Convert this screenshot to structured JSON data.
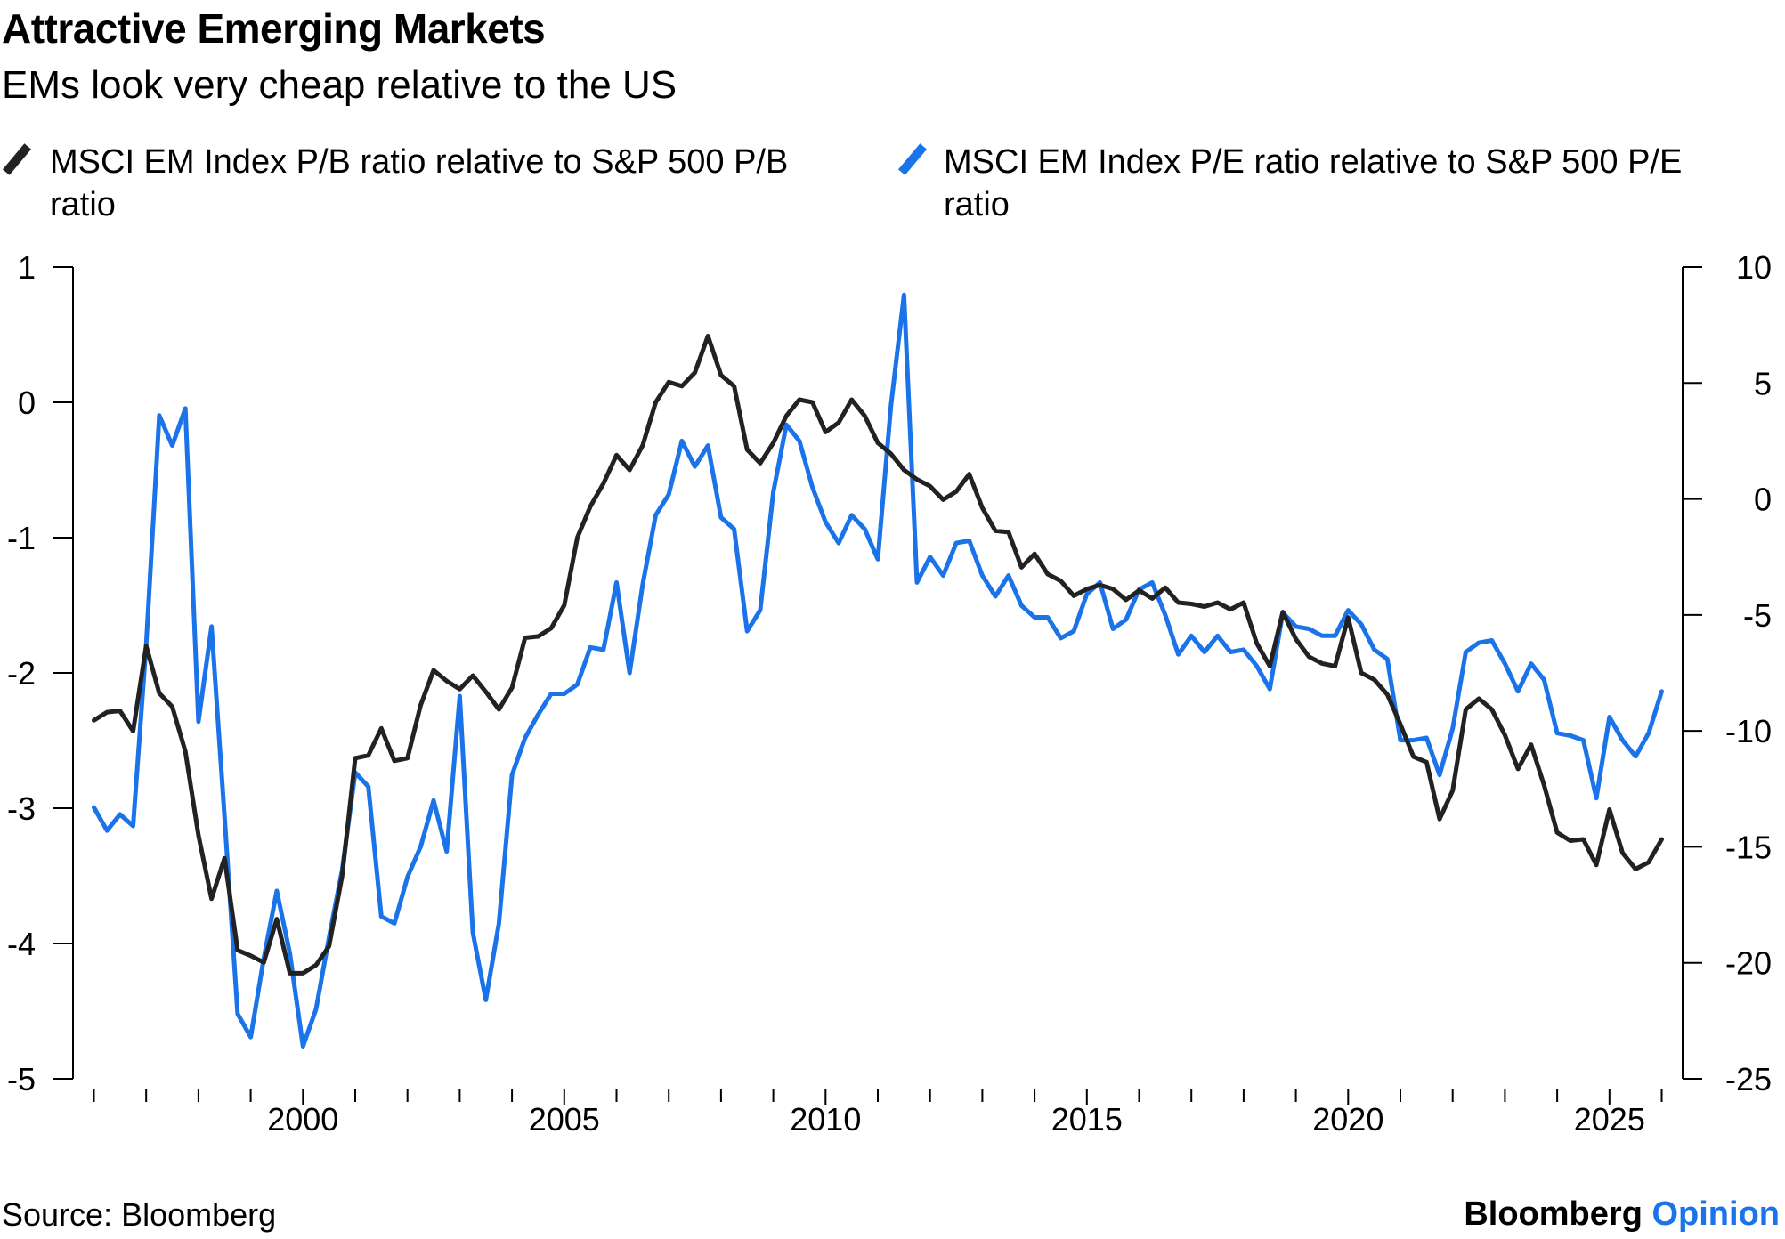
{
  "header": {
    "title": "Attractive Emerging Markets",
    "subtitle": "EMs look very cheap relative to the US"
  },
  "legend": [
    {
      "label": "MSCI EM Index P/B ratio relative to S&P 500 P/B ratio",
      "color": "#222222",
      "icon": "diagonal-dash-icon"
    },
    {
      "label": "MSCI EM Index P/E ratio relative to S&P 500 P/E ratio",
      "color": "#1a73e8",
      "icon": "diagonal-dash-icon"
    }
  ],
  "footer": {
    "source": "Source: Bloomberg",
    "brand_main": "Bloomberg",
    "brand_accent": "Opinion"
  },
  "chart_data": {
    "type": "line",
    "title": "Attractive Emerging Markets",
    "subtitle": "EMs look very cheap relative to the US",
    "x_range": [
      1995.6,
      2026.4
    ],
    "x_ticks": [
      2000,
      2005,
      2010,
      2015,
      2020,
      2025
    ],
    "x_tick_labels": [
      "2000",
      "2005",
      "2010",
      "2015",
      "2020",
      "2025"
    ],
    "y_left": {
      "min": -5,
      "max": 1,
      "ticks": [
        1,
        0,
        -1,
        -2,
        -3,
        -4,
        -5
      ],
      "tick_labels": [
        "1",
        "0",
        "-1",
        "-2",
        "-3",
        "-4",
        "-5"
      ]
    },
    "y_right": {
      "min": -25,
      "max": 10,
      "ticks": [
        10,
        5,
        0,
        -5,
        -10,
        -15,
        -20,
        -25
      ],
      "tick_labels": [
        "10",
        "5",
        "0",
        "-5",
        "-10",
        "-15",
        "-20",
        "-25"
      ]
    },
    "grid": false,
    "legend_position": "top",
    "source": "Source: Bloomberg",
    "series": [
      {
        "name": "MSCI EM Index P/B ratio relative to S&P 500 P/B ratio",
        "axis": "left",
        "color": "#222222",
        "points": [
          [
            1996.0,
            -2.35
          ],
          [
            1996.25,
            -2.29
          ],
          [
            1996.5,
            -2.28
          ],
          [
            1996.75,
            -2.43
          ],
          [
            1997.0,
            -1.8
          ],
          [
            1997.25,
            -2.15
          ],
          [
            1997.5,
            -2.25
          ],
          [
            1997.75,
            -2.58
          ],
          [
            1998.0,
            -3.2
          ],
          [
            1998.25,
            -3.67
          ],
          [
            1998.5,
            -3.37
          ],
          [
            1998.75,
            -4.05
          ],
          [
            1999.0,
            -4.09
          ],
          [
            1999.25,
            -4.14
          ],
          [
            1999.5,
            -3.82
          ],
          [
            1999.75,
            -4.22
          ],
          [
            2000.0,
            -4.22
          ],
          [
            2000.25,
            -4.16
          ],
          [
            2000.5,
            -4.02
          ],
          [
            2000.75,
            -3.5
          ],
          [
            2001.0,
            -2.63
          ],
          [
            2001.25,
            -2.61
          ],
          [
            2001.5,
            -2.41
          ],
          [
            2001.75,
            -2.65
          ],
          [
            2002.0,
            -2.63
          ],
          [
            2002.25,
            -2.24
          ],
          [
            2002.5,
            -1.98
          ],
          [
            2002.75,
            -2.06
          ],
          [
            2003.0,
            -2.12
          ],
          [
            2003.25,
            -2.02
          ],
          [
            2003.5,
            -2.14
          ],
          [
            2003.75,
            -2.27
          ],
          [
            2004.0,
            -2.11
          ],
          [
            2004.25,
            -1.74
          ],
          [
            2004.5,
            -1.73
          ],
          [
            2004.75,
            -1.67
          ],
          [
            2005.0,
            -1.5
          ],
          [
            2005.25,
            -1.0
          ],
          [
            2005.5,
            -0.77
          ],
          [
            2005.75,
            -0.6
          ],
          [
            2006.0,
            -0.39
          ],
          [
            2006.25,
            -0.5
          ],
          [
            2006.5,
            -0.32
          ],
          [
            2006.75,
            0.0
          ],
          [
            2007.0,
            0.15
          ],
          [
            2007.25,
            0.12
          ],
          [
            2007.5,
            0.22
          ],
          [
            2007.75,
            0.49
          ],
          [
            2008.0,
            0.2
          ],
          [
            2008.25,
            0.12
          ],
          [
            2008.5,
            -0.35
          ],
          [
            2008.75,
            -0.45
          ],
          [
            2009.0,
            -0.3
          ],
          [
            2009.25,
            -0.1
          ],
          [
            2009.5,
            0.02
          ],
          [
            2009.75,
            0.0
          ],
          [
            2010.0,
            -0.22
          ],
          [
            2010.25,
            -0.15
          ],
          [
            2010.5,
            0.02
          ],
          [
            2010.75,
            -0.1
          ],
          [
            2011.0,
            -0.3
          ],
          [
            2011.25,
            -0.38
          ],
          [
            2011.5,
            -0.5
          ],
          [
            2011.75,
            -0.57
          ],
          [
            2012.0,
            -0.62
          ],
          [
            2012.25,
            -0.72
          ],
          [
            2012.5,
            -0.66
          ],
          [
            2012.75,
            -0.53
          ],
          [
            2013.0,
            -0.78
          ],
          [
            2013.25,
            -0.95
          ],
          [
            2013.5,
            -0.96
          ],
          [
            2013.75,
            -1.22
          ],
          [
            2014.0,
            -1.12
          ],
          [
            2014.25,
            -1.27
          ],
          [
            2014.5,
            -1.32
          ],
          [
            2014.75,
            -1.43
          ],
          [
            2015.0,
            -1.38
          ],
          [
            2015.25,
            -1.35
          ],
          [
            2015.5,
            -1.38
          ],
          [
            2015.75,
            -1.46
          ],
          [
            2016.0,
            -1.39
          ],
          [
            2016.25,
            -1.45
          ],
          [
            2016.5,
            -1.37
          ],
          [
            2016.75,
            -1.48
          ],
          [
            2017.0,
            -1.49
          ],
          [
            2017.25,
            -1.51
          ],
          [
            2017.5,
            -1.48
          ],
          [
            2017.75,
            -1.53
          ],
          [
            2018.0,
            -1.48
          ],
          [
            2018.25,
            -1.78
          ],
          [
            2018.5,
            -1.95
          ],
          [
            2018.75,
            -1.55
          ],
          [
            2019.0,
            -1.75
          ],
          [
            2019.25,
            -1.88
          ],
          [
            2019.5,
            -1.93
          ],
          [
            2019.75,
            -1.95
          ],
          [
            2020.0,
            -1.59
          ],
          [
            2020.25,
            -2.0
          ],
          [
            2020.5,
            -2.05
          ],
          [
            2020.75,
            -2.16
          ],
          [
            2021.0,
            -2.38
          ],
          [
            2021.25,
            -2.62
          ],
          [
            2021.5,
            -2.66
          ],
          [
            2021.75,
            -3.08
          ],
          [
            2022.0,
            -2.87
          ],
          [
            2022.25,
            -2.27
          ],
          [
            2022.5,
            -2.19
          ],
          [
            2022.75,
            -2.27
          ],
          [
            2023.0,
            -2.46
          ],
          [
            2023.25,
            -2.71
          ],
          [
            2023.5,
            -2.53
          ],
          [
            2023.75,
            -2.83
          ],
          [
            2024.0,
            -3.18
          ],
          [
            2024.25,
            -3.24
          ],
          [
            2024.5,
            -3.23
          ],
          [
            2024.75,
            -3.42
          ],
          [
            2025.0,
            -3.01
          ],
          [
            2025.25,
            -3.33
          ],
          [
            2025.5,
            -3.45
          ],
          [
            2025.75,
            -3.4
          ],
          [
            2026.0,
            -3.23
          ]
        ]
      },
      {
        "name": "MSCI EM Index P/E ratio relative to S&P 500 P/E ratio",
        "axis": "right",
        "color": "#1a73e8",
        "points": [
          [
            1996.0,
            -13.3
          ],
          [
            1996.25,
            -14.3
          ],
          [
            1996.5,
            -13.6
          ],
          [
            1996.75,
            -14.1
          ],
          [
            1997.0,
            -6.3
          ],
          [
            1997.25,
            3.6
          ],
          [
            1997.5,
            2.3
          ],
          [
            1997.75,
            3.9
          ],
          [
            1998.0,
            -9.6
          ],
          [
            1998.25,
            -5.5
          ],
          [
            1998.5,
            -13.7
          ],
          [
            1998.75,
            -22.2
          ],
          [
            1999.0,
            -23.2
          ],
          [
            1999.25,
            -19.8
          ],
          [
            1999.5,
            -16.9
          ],
          [
            1999.75,
            -19.6
          ],
          [
            2000.0,
            -23.6
          ],
          [
            2000.25,
            -22.0
          ],
          [
            2000.5,
            -18.9
          ],
          [
            2000.75,
            -16.0
          ],
          [
            2001.0,
            -11.8
          ],
          [
            2001.25,
            -12.4
          ],
          [
            2001.5,
            -18.0
          ],
          [
            2001.75,
            -18.3
          ],
          [
            2002.0,
            -16.3
          ],
          [
            2002.25,
            -15.0
          ],
          [
            2002.5,
            -13.0
          ],
          [
            2002.75,
            -15.2
          ],
          [
            2003.0,
            -8.5
          ],
          [
            2003.25,
            -18.7
          ],
          [
            2003.5,
            -21.6
          ],
          [
            2003.75,
            -18.3
          ],
          [
            2004.0,
            -11.9
          ],
          [
            2004.25,
            -10.3
          ],
          [
            2004.5,
            -9.3
          ],
          [
            2004.75,
            -8.4
          ],
          [
            2005.0,
            -8.4
          ],
          [
            2005.25,
            -8.0
          ],
          [
            2005.5,
            -6.4
          ],
          [
            2005.75,
            -6.5
          ],
          [
            2006.0,
            -3.6
          ],
          [
            2006.25,
            -7.5
          ],
          [
            2006.5,
            -3.7
          ],
          [
            2006.75,
            -0.7
          ],
          [
            2007.0,
            0.2
          ],
          [
            2007.25,
            2.5
          ],
          [
            2007.5,
            1.4
          ],
          [
            2007.75,
            2.3
          ],
          [
            2008.0,
            -0.8
          ],
          [
            2008.25,
            -1.3
          ],
          [
            2008.5,
            -5.7
          ],
          [
            2008.75,
            -4.8
          ],
          [
            2009.0,
            0.3
          ],
          [
            2009.25,
            3.2
          ],
          [
            2009.5,
            2.5
          ],
          [
            2009.75,
            0.5
          ],
          [
            2010.0,
            -1.0
          ],
          [
            2010.25,
            -1.9
          ],
          [
            2010.5,
            -0.7
          ],
          [
            2010.75,
            -1.3
          ],
          [
            2011.0,
            -2.6
          ],
          [
            2011.25,
            4.0
          ],
          [
            2011.5,
            8.8
          ],
          [
            2011.75,
            -3.6
          ],
          [
            2012.0,
            -2.5
          ],
          [
            2012.25,
            -3.3
          ],
          [
            2012.5,
            -1.9
          ],
          [
            2012.75,
            -1.8
          ],
          [
            2013.0,
            -3.3
          ],
          [
            2013.25,
            -4.2
          ],
          [
            2013.5,
            -3.3
          ],
          [
            2013.75,
            -4.6
          ],
          [
            2014.0,
            -5.1
          ],
          [
            2014.25,
            -5.1
          ],
          [
            2014.5,
            -6.0
          ],
          [
            2014.75,
            -5.7
          ],
          [
            2015.0,
            -4.1
          ],
          [
            2015.25,
            -3.6
          ],
          [
            2015.5,
            -5.6
          ],
          [
            2015.75,
            -5.2
          ],
          [
            2016.0,
            -3.9
          ],
          [
            2016.25,
            -3.6
          ],
          [
            2016.5,
            -5.0
          ],
          [
            2016.75,
            -6.7
          ],
          [
            2017.0,
            -5.9
          ],
          [
            2017.25,
            -6.6
          ],
          [
            2017.5,
            -5.9
          ],
          [
            2017.75,
            -6.6
          ],
          [
            2018.0,
            -6.5
          ],
          [
            2018.25,
            -7.2
          ],
          [
            2018.5,
            -8.2
          ],
          [
            2018.75,
            -4.9
          ],
          [
            2019.0,
            -5.5
          ],
          [
            2019.25,
            -5.6
          ],
          [
            2019.5,
            -5.9
          ],
          [
            2019.75,
            -5.9
          ],
          [
            2020.0,
            -4.8
          ],
          [
            2020.25,
            -5.4
          ],
          [
            2020.5,
            -6.5
          ],
          [
            2020.75,
            -6.9
          ],
          [
            2021.0,
            -10.4
          ],
          [
            2021.25,
            -10.4
          ],
          [
            2021.5,
            -10.3
          ],
          [
            2021.75,
            -11.9
          ],
          [
            2022.0,
            -9.9
          ],
          [
            2022.25,
            -6.6
          ],
          [
            2022.5,
            -6.2
          ],
          [
            2022.75,
            -6.1
          ],
          [
            2023.0,
            -7.1
          ],
          [
            2023.25,
            -8.3
          ],
          [
            2023.5,
            -7.1
          ],
          [
            2023.75,
            -7.8
          ],
          [
            2024.0,
            -10.1
          ],
          [
            2024.25,
            -10.2
          ],
          [
            2024.5,
            -10.4
          ],
          [
            2024.75,
            -12.9
          ],
          [
            2025.0,
            -9.4
          ],
          [
            2025.25,
            -10.4
          ],
          [
            2025.5,
            -11.1
          ],
          [
            2025.75,
            -10.1
          ],
          [
            2026.0,
            -8.3
          ]
        ]
      }
    ]
  }
}
